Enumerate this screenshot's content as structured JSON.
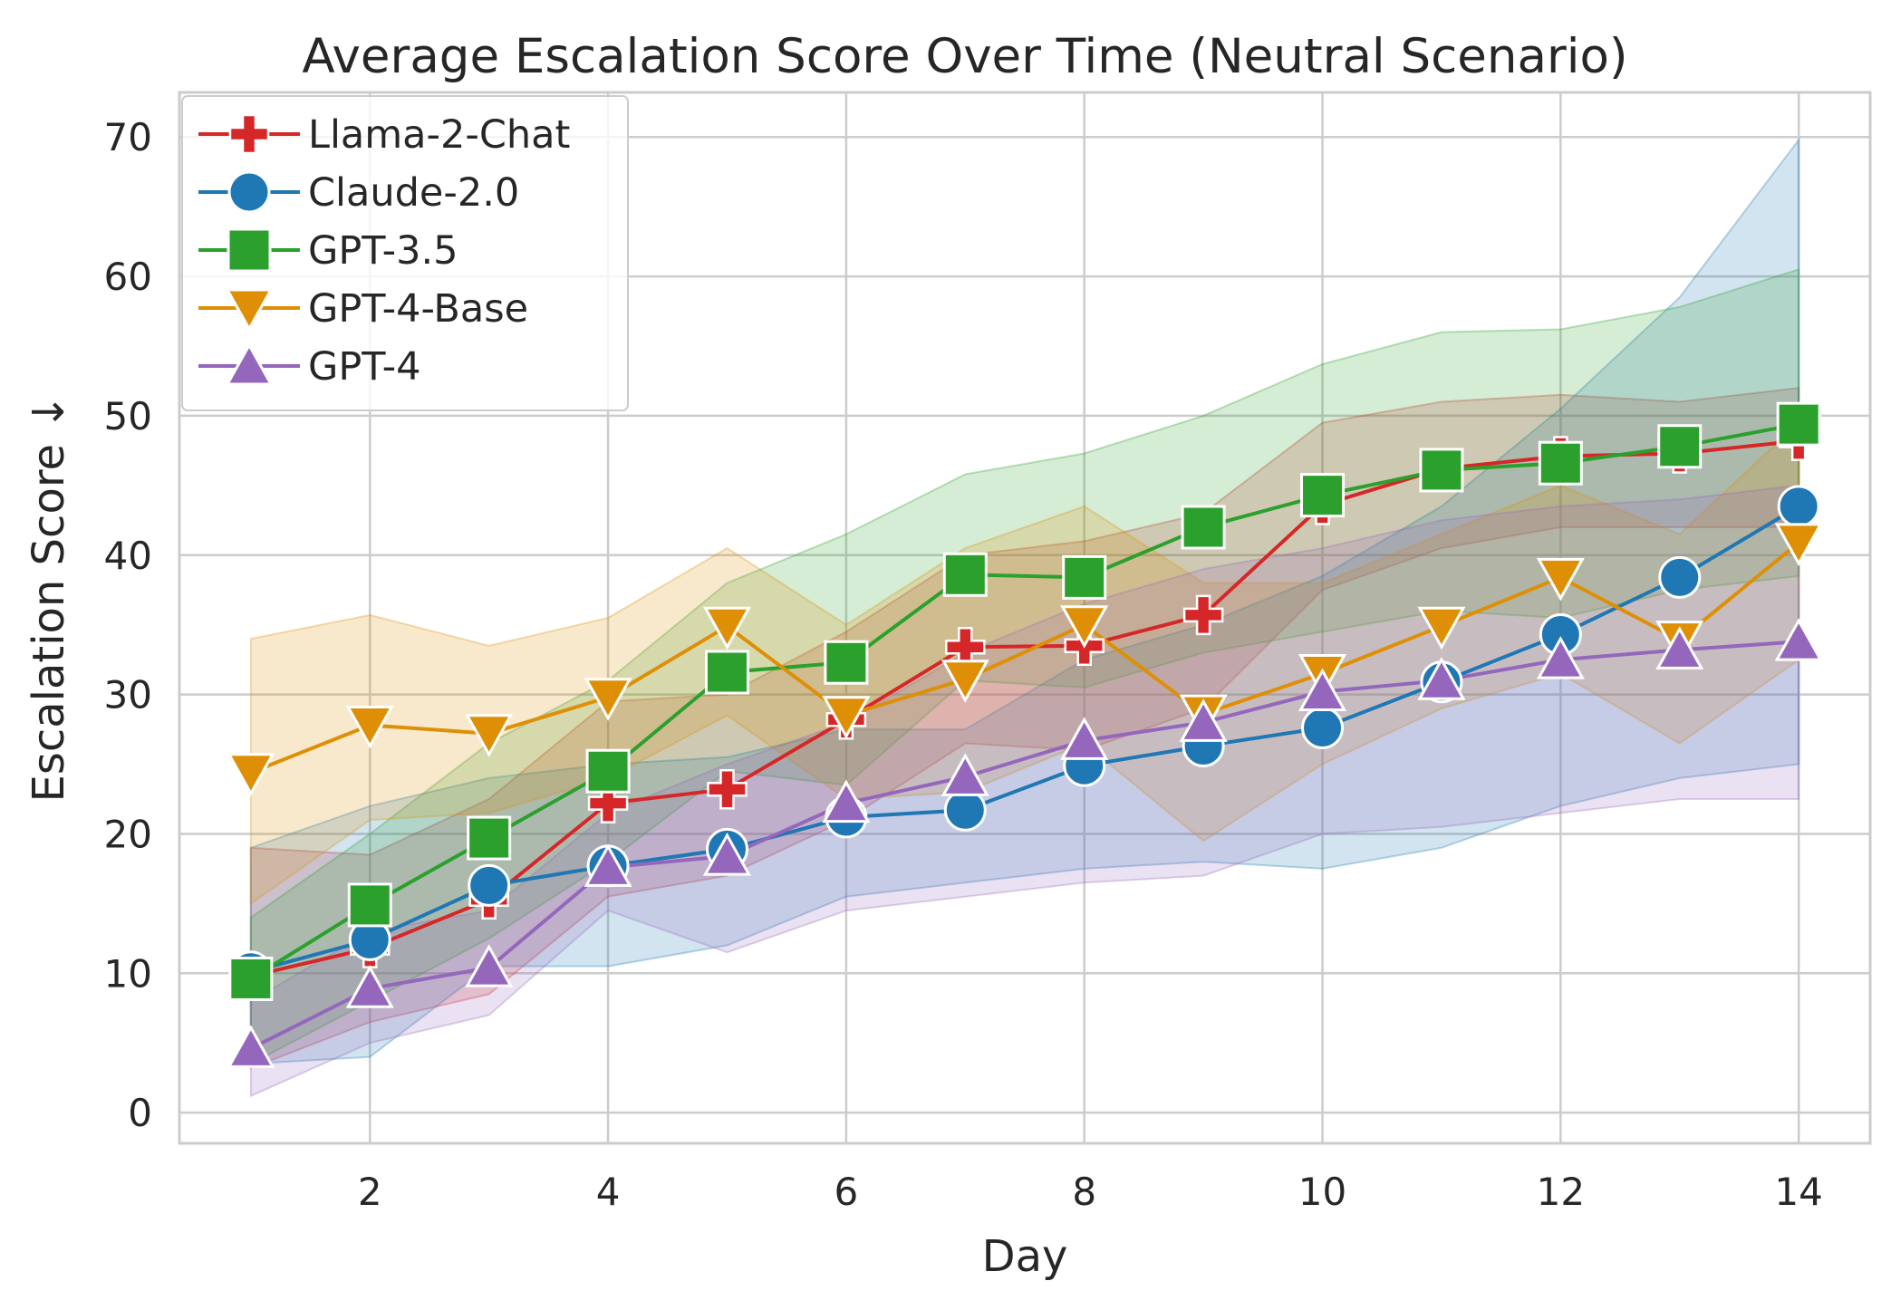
{
  "chart_data": {
    "type": "line",
    "title": "Average Escalation Score Over Time (Neutral Scenario)",
    "xlabel": "Day",
    "ylabel": "Escalation Score ↓",
    "xlim": [
      0.4,
      14.6
    ],
    "ylim": [
      -2.2,
      73.2
    ],
    "xticks": [
      2,
      4,
      6,
      8,
      10,
      12,
      14
    ],
    "yticks": [
      0,
      10,
      20,
      30,
      40,
      50,
      60,
      70
    ],
    "grid": true,
    "legend_position": "top-left",
    "x": [
      1,
      2,
      3,
      4,
      5,
      6,
      7,
      8,
      9,
      10,
      11,
      12,
      13,
      14
    ],
    "series": [
      {
        "name": "Llama-2-Chat",
        "color": "#d62728",
        "marker": "plus",
        "values": [
          9.8,
          11.8,
          15.3,
          22.2,
          23.2,
          28.2,
          33.4,
          33.5,
          35.7,
          43.6,
          46.2,
          47.1,
          47.3,
          48.2
        ],
        "ci_low": [
          3.2,
          6.5,
          8.5,
          15.5,
          17.0,
          21.0,
          26.5,
          26.0,
          29.0,
          37.5,
          40.5,
          42.0,
          42.0,
          42.0
        ],
        "ci_high": [
          19.0,
          18.5,
          22.5,
          29.5,
          30.0,
          34.5,
          40.0,
          41.0,
          43.0,
          49.5,
          51.0,
          51.5,
          51.0,
          52.0
        ]
      },
      {
        "name": "Claude-2.0",
        "color": "#1f77b4",
        "marker": "circle",
        "values": [
          10.1,
          12.4,
          16.3,
          17.7,
          18.9,
          21.2,
          21.7,
          24.9,
          26.3,
          27.6,
          30.9,
          34.3,
          38.4,
          43.5
        ],
        "ci_low": [
          3.5,
          4.0,
          10.5,
          10.5,
          12.0,
          15.5,
          16.5,
          17.5,
          18.0,
          17.5,
          19.0,
          22.0,
          24.0,
          25.0
        ],
        "ci_high": [
          19.0,
          22.0,
          24.0,
          25.0,
          25.5,
          27.5,
          27.5,
          32.5,
          35.0,
          38.5,
          43.5,
          50.5,
          58.5,
          69.8
        ]
      },
      {
        "name": "GPT-3.5",
        "color": "#2ca02c",
        "marker": "square",
        "values": [
          9.6,
          14.9,
          19.7,
          24.5,
          31.6,
          32.3,
          38.6,
          38.4,
          42.0,
          44.3,
          46.1,
          46.6,
          47.8,
          49.4
        ],
        "ci_low": [
          3.5,
          8.0,
          12.5,
          18.0,
          24.5,
          23.5,
          31.0,
          30.5,
          33.0,
          34.5,
          36.0,
          35.5,
          37.5,
          38.5
        ],
        "ci_high": [
          14.0,
          20.0,
          26.5,
          31.0,
          38.0,
          41.5,
          45.8,
          47.3,
          50.0,
          53.7,
          56.0,
          56.2,
          57.8,
          60.5
        ]
      },
      {
        "name": "GPT-4-Base",
        "color": "#de8f05",
        "marker": "triangle-down",
        "values": [
          24.4,
          27.8,
          27.2,
          29.8,
          34.9,
          28.5,
          31.1,
          35.0,
          28.6,
          31.5,
          34.9,
          38.4,
          33.9,
          40.9
        ],
        "ci_low": [
          15.0,
          21.0,
          21.5,
          24.0,
          28.5,
          22.5,
          23.0,
          26.5,
          19.5,
          25.0,
          29.0,
          31.5,
          26.5,
          32.5
        ],
        "ci_high": [
          34.0,
          35.7,
          33.5,
          35.5,
          40.5,
          35.0,
          40.5,
          43.5,
          38.0,
          38.0,
          41.5,
          45.0,
          41.5,
          49.5
        ]
      },
      {
        "name": "GPT-4",
        "color": "#9467bd",
        "marker": "triangle-up",
        "values": [
          4.6,
          8.9,
          10.4,
          17.6,
          18.4,
          22.2,
          24.1,
          26.7,
          28.0,
          30.2,
          31.0,
          32.5,
          33.2,
          33.8
        ],
        "ci_low": [
          1.2,
          5.0,
          7.0,
          14.5,
          11.5,
          14.5,
          15.5,
          16.5,
          17.0,
          20.0,
          20.5,
          21.5,
          22.5,
          22.5
        ],
        "ci_high": [
          8.0,
          13.0,
          14.5,
          21.5,
          25.0,
          28.0,
          33.0,
          36.5,
          39.0,
          40.5,
          42.5,
          43.5,
          44.0,
          45.0
        ]
      }
    ]
  }
}
